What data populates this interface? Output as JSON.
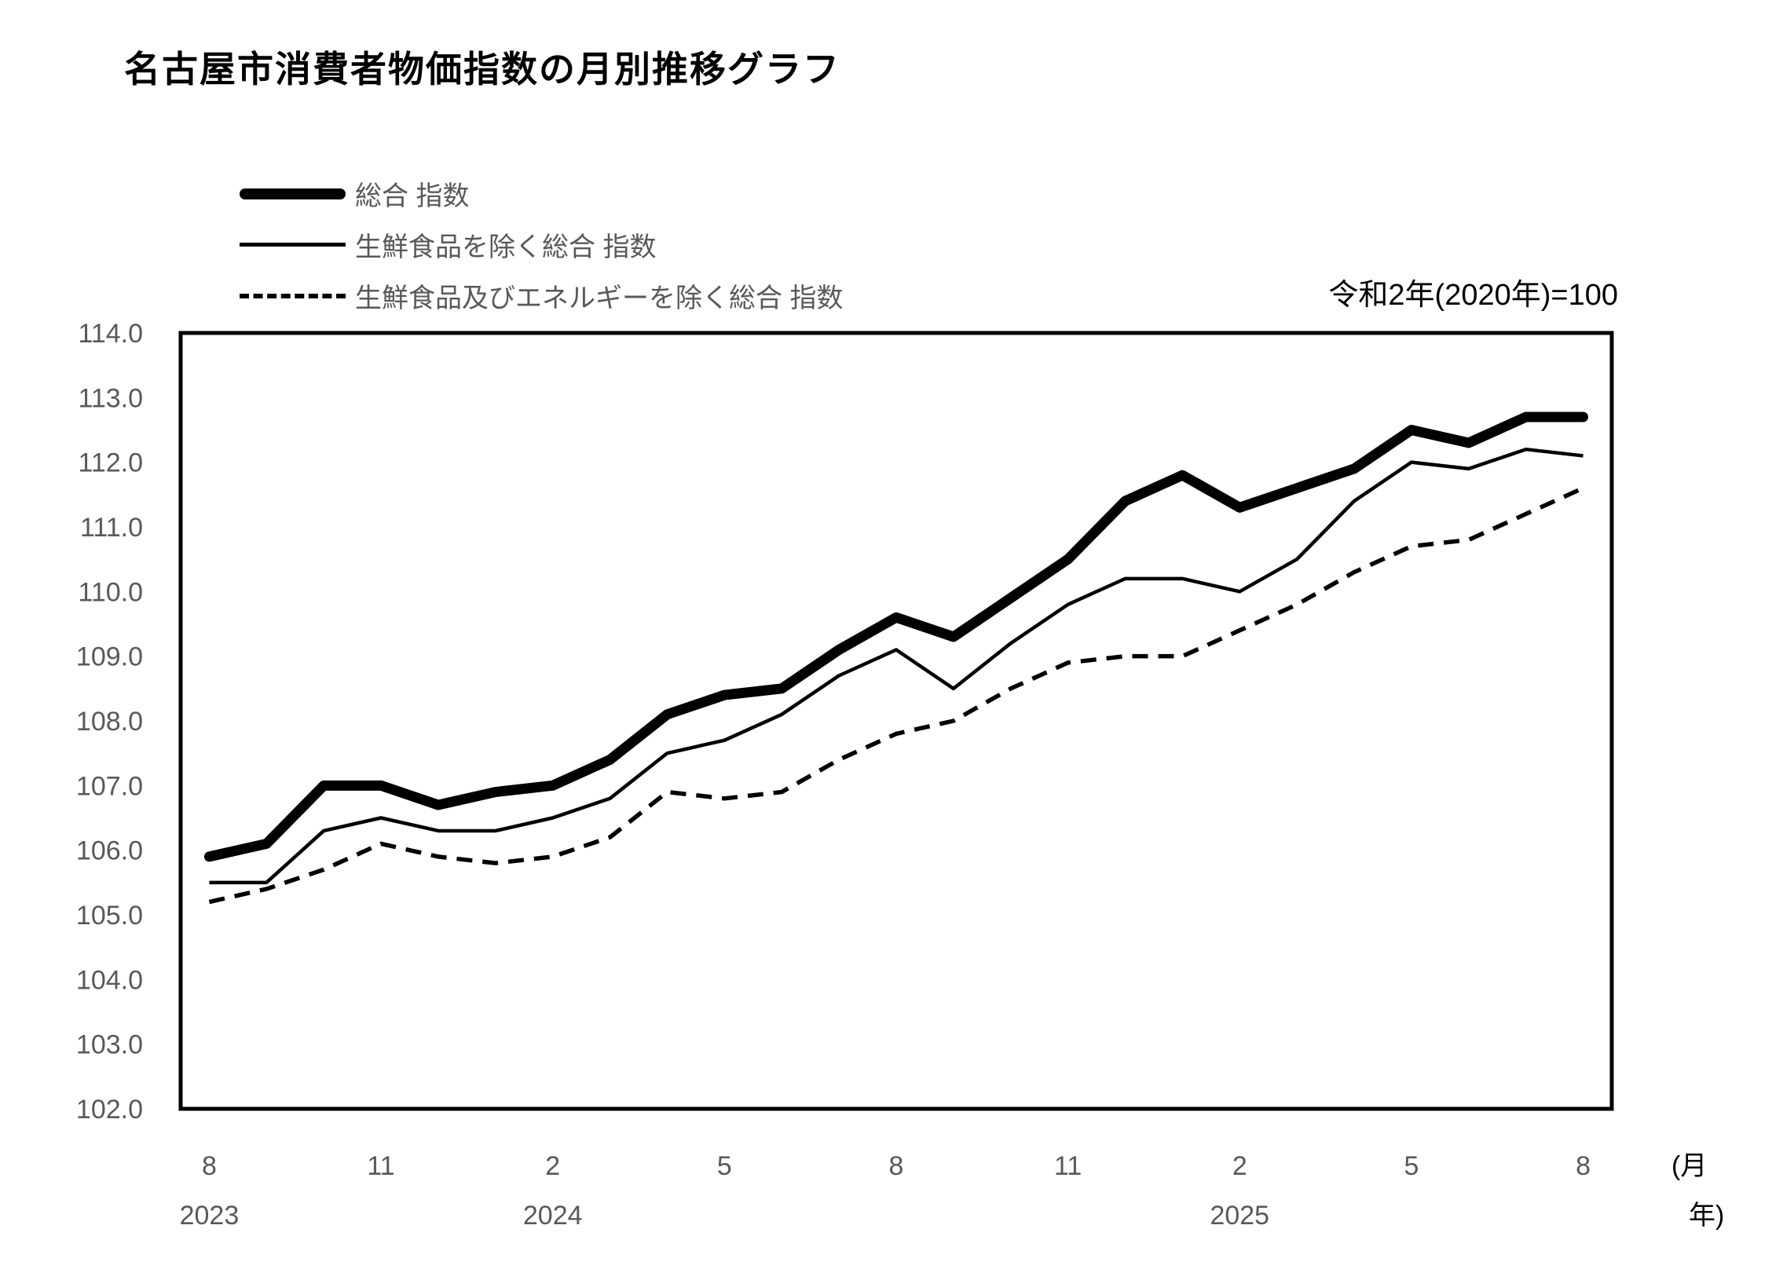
{
  "title": "名古屋市消費者物価指数の月別推移グラフ",
  "note": "令和2年(2020年)=100",
  "legend": {
    "items": [
      {
        "label": "総合 指数",
        "swatch": "thick-solid-line"
      },
      {
        "label": "生鮮食品を除く総合 指数",
        "swatch": "thin-solid-line"
      },
      {
        "label": "生鮮食品及びエネルギーを除く総合 指数",
        "swatch": "dashed-line"
      }
    ]
  },
  "axis": {
    "x_unit_month": "(月",
    "x_unit_year": "年)"
  },
  "colors": {
    "line": "#000000",
    "tick_text": "#595959",
    "text": "#000000",
    "background": "#ffffff"
  },
  "chart_data": {
    "type": "line",
    "title": "名古屋市消費者物価指数の月別推移グラフ",
    "subtitle": "令和2年(2020年)=100",
    "x": [
      "2023-08",
      "2023-09",
      "2023-10",
      "2023-11",
      "2023-12",
      "2024-01",
      "2024-02",
      "2024-03",
      "2024-04",
      "2024-05",
      "2024-06",
      "2024-07",
      "2024-08",
      "2024-09",
      "2024-10",
      "2024-11",
      "2024-12",
      "2025-01",
      "2025-02",
      "2025-03",
      "2025-04",
      "2025-05",
      "2025-06",
      "2025-07",
      "2025-08"
    ],
    "x_tick_labels": [
      {
        "index": 0,
        "label": "8"
      },
      {
        "index": 3,
        "label": "11"
      },
      {
        "index": 6,
        "label": "2"
      },
      {
        "index": 9,
        "label": "5"
      },
      {
        "index": 12,
        "label": "8"
      },
      {
        "index": 15,
        "label": "11"
      },
      {
        "index": 18,
        "label": "2"
      },
      {
        "index": 21,
        "label": "5"
      },
      {
        "index": 24,
        "label": "8"
      }
    ],
    "year_labels": [
      {
        "index": 0,
        "label": "2023"
      },
      {
        "index": 6,
        "label": "2024"
      },
      {
        "index": 18,
        "label": "2025"
      }
    ],
    "ylim": [
      102.0,
      114.0
    ],
    "ytick_step": 1.0,
    "ytick_labels": [
      "114.0",
      "113.0",
      "112.0",
      "111.0",
      "110.0",
      "109.0",
      "108.0",
      "107.0",
      "106.0",
      "105.0",
      "104.0",
      "103.0",
      "102.0"
    ],
    "grid": false,
    "legend_position": "top-left",
    "series": [
      {
        "name": "総合 指数",
        "style": "thick-solid",
        "values": [
          105.9,
          106.1,
          107.0,
          107.0,
          106.7,
          106.9,
          107.0,
          107.4,
          108.1,
          108.4,
          108.5,
          109.1,
          109.6,
          109.3,
          109.9,
          110.5,
          111.4,
          111.8,
          111.3,
          111.6,
          111.9,
          112.5,
          112.3,
          112.7,
          112.7
        ]
      },
      {
        "name": "生鮮食品を除く総合 指数",
        "style": "thin-solid",
        "values": [
          105.5,
          105.5,
          106.3,
          106.5,
          106.3,
          106.3,
          106.5,
          106.8,
          107.5,
          107.7,
          108.1,
          108.7,
          109.1,
          108.5,
          109.2,
          109.8,
          110.2,
          110.2,
          110.0,
          110.5,
          111.4,
          112.0,
          111.9,
          112.2,
          112.1
        ]
      },
      {
        "name": "生鮮食品及びエネルギーを除く総合 指数",
        "style": "dashed",
        "values": [
          105.2,
          105.4,
          105.7,
          106.1,
          105.9,
          105.8,
          105.9,
          106.2,
          106.9,
          106.8,
          106.9,
          107.4,
          107.8,
          108.0,
          108.5,
          108.9,
          109.0,
          109.0,
          109.4,
          109.8,
          110.3,
          110.7,
          110.8,
          111.2,
          111.6
        ]
      }
    ]
  }
}
